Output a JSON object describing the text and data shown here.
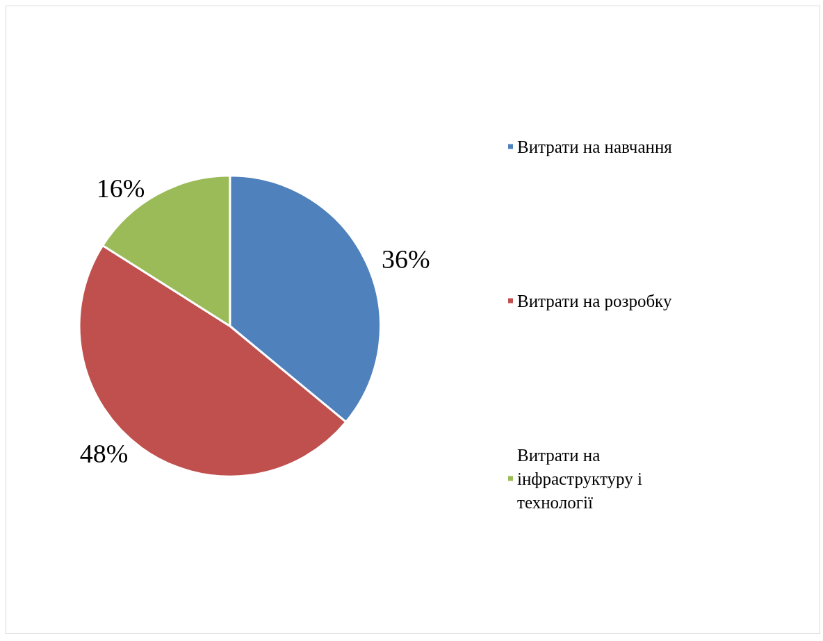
{
  "chart_data": {
    "type": "pie",
    "categories": [
      "Витрати на навчання",
      "Витрати на розробку",
      "Витрати на інфраструктуру і технології"
    ],
    "values": [
      36,
      48,
      16
    ],
    "colors": [
      "#4f81bd",
      "#c0504d",
      "#9bbb59"
    ],
    "value_labels": [
      "36%",
      "48%",
      "16%"
    ],
    "legend": "right"
  }
}
